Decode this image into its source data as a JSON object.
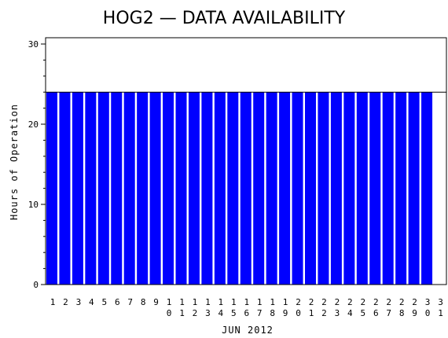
{
  "chart_data": {
    "type": "bar",
    "title": "HOG2 — DATA AVAILABILITY",
    "xlabel": "JUN 2012",
    "ylabel": "Hours of Operation",
    "ylim": [
      0,
      30
    ],
    "yticks": [
      0,
      10,
      20,
      30
    ],
    "reference_line": 24,
    "bar_color": "#0000ff",
    "categories": [
      "1",
      "2",
      "3",
      "4",
      "5",
      "6",
      "7",
      "8",
      "9",
      "10",
      "11",
      "12",
      "13",
      "14",
      "15",
      "16",
      "17",
      "18",
      "19",
      "20",
      "21",
      "22",
      "23",
      "24",
      "25",
      "26",
      "27",
      "28",
      "29",
      "30",
      "31"
    ],
    "values": [
      24,
      24,
      24,
      24,
      24,
      24,
      24,
      24,
      24,
      24,
      24,
      24,
      24,
      24,
      24,
      24,
      24,
      24,
      24,
      24,
      24,
      24,
      24,
      24,
      24,
      24,
      24,
      24,
      24,
      24,
      null
    ]
  }
}
